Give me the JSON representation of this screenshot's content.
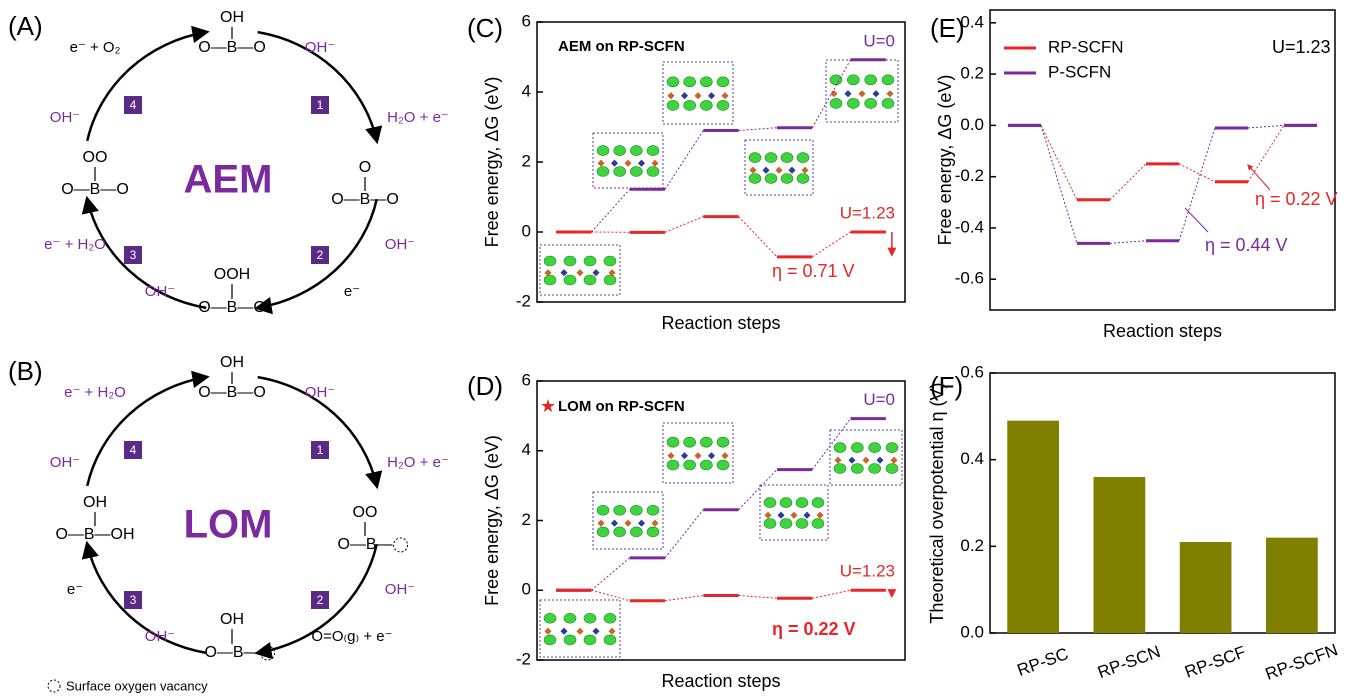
{
  "diagrams": [
    {
      "label": "(A)",
      "center": "AEM",
      "steps": [
        "1",
        "2",
        "3",
        "4"
      ],
      "structures": [
        [
          "OH",
          "O—B—O"
        ],
        [
          "O",
          "O—B—O"
        ],
        [
          "OOH",
          "O—B—O"
        ],
        [
          "OO",
          "O—B—O"
        ]
      ],
      "species": [
        {
          "text": "e⁻ + O₂",
          "color": "#000000"
        },
        {
          "text": "OH⁻",
          "color": "#7b2a9e"
        },
        {
          "text": "OH⁻",
          "color": "#7b2a9e"
        },
        {
          "text": "H₂O + e⁻",
          "color": "#7b2a9e"
        },
        {
          "text": "OH⁻",
          "color": "#7b2a9e"
        },
        {
          "text": "e⁻",
          "color": "#000000"
        },
        {
          "text": "e⁻ + H₂O",
          "color": "#7b2a9e"
        },
        {
          "text": "OH⁻",
          "color": "#7b2a9e"
        }
      ]
    },
    {
      "label": "(B)",
      "center": "LOM",
      "steps": [
        "1",
        "2",
        "3",
        "4"
      ],
      "structures": [
        [
          "OH",
          "O—B—O"
        ],
        [
          "OO",
          "O—B—"
        ],
        [
          "OH",
          "O—B—"
        ],
        [
          "OH",
          "O—B—OH"
        ]
      ],
      "species": [
        {
          "text": "e⁻ + H₂O",
          "color": "#7b2a9e"
        },
        {
          "text": "OH⁻",
          "color": "#7b2a9e"
        },
        {
          "text": "OH⁻",
          "color": "#7b2a9e"
        },
        {
          "text": "H₂O + e⁻",
          "color": "#7b2a9e"
        },
        {
          "text": "OH⁻",
          "color": "#7b2a9e"
        },
        {
          "text": "O=O₍g₎ + e⁻",
          "color": "#000000"
        },
        {
          "text": "e⁻",
          "color": "#000000"
        },
        {
          "text": "OH⁻",
          "color": "#7b2a9e"
        }
      ],
      "footnote": "Surface oxygen vacancy"
    }
  ],
  "chart_data": [
    {
      "type": "step",
      "panel": "(C)",
      "title": "AEM on RP-SCFN",
      "ylabel": "Free energy, ΔG (eV)",
      "xlabel": "Reaction steps",
      "ylim": [
        -2,
        6
      ],
      "yticks": [
        -2,
        0,
        2,
        4,
        6
      ],
      "legend": false,
      "series": [
        {
          "name": "U=0",
          "color": "#7b2a9e",
          "values": [
            0,
            1.22,
            2.9,
            2.98,
            4.92
          ]
        },
        {
          "name": "U=1.23",
          "color": "#e8262a",
          "values": [
            0,
            -0.01,
            0.44,
            -0.71,
            0
          ]
        }
      ],
      "annotations": [
        {
          "text": "η = 0.71 V",
          "color": "#e8262a",
          "bold": false
        }
      ]
    },
    {
      "type": "step",
      "panel": "(D)",
      "title": "LOM on RP-SCFN",
      "ylabel": "Free energy, ΔG (eV)",
      "xlabel": "Reaction steps",
      "ylim": [
        -2,
        6
      ],
      "yticks": [
        -2,
        0,
        2,
        4,
        6
      ],
      "legend": false,
      "series": [
        {
          "name": "U=0",
          "color": "#7b2a9e",
          "values": [
            0,
            0.93,
            2.31,
            3.46,
            4.92
          ]
        },
        {
          "name": "U=1.23",
          "color": "#e8262a",
          "values": [
            0,
            -0.3,
            -0.15,
            -0.23,
            0
          ]
        }
      ],
      "annotations": [
        {
          "text": "η = 0.22 V",
          "color": "#e8262a",
          "bold": true
        }
      ]
    },
    {
      "type": "step",
      "panel": "(E)",
      "ylabel": "Free energy, ΔG (eV)",
      "xlabel": "Reaction steps",
      "ylim": [
        -0.72,
        0.45
      ],
      "yticks": [
        0.4,
        0.2,
        {
          "value": 0,
          "label": "0.0"
        },
        -0.2,
        -0.4,
        -0.6
      ],
      "legend": true,
      "series": [
        {
          "name": "RP-SCFN",
          "color": "#e8262a",
          "values": [
            0,
            -0.29,
            -0.15,
            -0.22,
            0
          ]
        },
        {
          "name": "P-SCFN",
          "color": "#7b2a9e",
          "values": [
            0,
            -0.46,
            -0.45,
            -0.01,
            0
          ]
        }
      ],
      "annotations": [
        {
          "text": "U=1.23",
          "color": "#000000",
          "bold": false
        },
        {
          "text": "η = 0.22 V",
          "color": "#e8262a",
          "bold": false
        },
        {
          "text": "η = 0.44 V",
          "color": "#7b2a9e",
          "bold": false
        }
      ]
    },
    {
      "type": "bar",
      "panel": "(F)",
      "ylabel": "Theoretical overpotential η (V)",
      "categories": [
        "RP-SC",
        "RP-SCN",
        "RP-SCF",
        "RP-SCFN"
      ],
      "values": [
        0.49,
        0.36,
        0.21,
        0.22
      ],
      "color": "#808000",
      "ylim": [
        0,
        0.6
      ],
      "yticks": [
        {
          "value": 0,
          "label": "0.0"
        },
        0.2,
        0.4,
        0.6
      ]
    }
  ]
}
